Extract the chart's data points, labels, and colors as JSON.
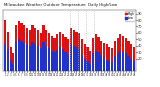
{
  "title": "Milwaukee Weather Outdoor Temperature  Daily High/Low",
  "high_color": "#dd1111",
  "low_color": "#2233cc",
  "bg_color": "#ffffff",
  "grid_color": "#bbbbbb",
  "ylim": [
    0,
    95
  ],
  "ytick_vals": [
    20,
    30,
    40,
    50,
    60,
    70,
    80,
    90
  ],
  "ytick_labels": [
    "20",
    "30",
    "40",
    "50",
    "60",
    "70",
    "80",
    "90"
  ],
  "highs": [
    80,
    62,
    38,
    28,
    72,
    78,
    75,
    72,
    68,
    65,
    72,
    68,
    65,
    60,
    72,
    65,
    60,
    55,
    52,
    58,
    62,
    58,
    54,
    50,
    68,
    65,
    62,
    60,
    50,
    42,
    38,
    32,
    52,
    58,
    54,
    48,
    44,
    42,
    38,
    36,
    48,
    52,
    58,
    55,
    52,
    48,
    42,
    38
  ],
  "lows": [
    42,
    35,
    18,
    12,
    45,
    50,
    48,
    44,
    42,
    40,
    45,
    42,
    40,
    36,
    46,
    40,
    36,
    32,
    30,
    34,
    38,
    35,
    30,
    26,
    42,
    40,
    38,
    35,
    26,
    20,
    16,
    12,
    28,
    32,
    30,
    26,
    22,
    18,
    16,
    14,
    24,
    28,
    32,
    30,
    28,
    24,
    20,
    16
  ],
  "dotted_lines": [
    23.5,
    26.5,
    29.5,
    32.5
  ],
  "legend_high_label": "High",
  "legend_low_label": "Low",
  "n_bars": 48
}
